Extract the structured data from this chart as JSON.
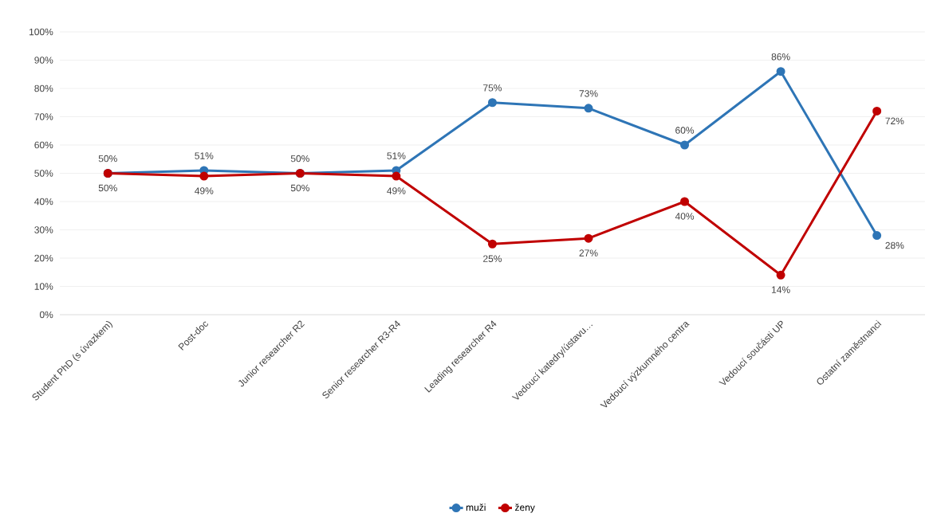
{
  "chart_data": {
    "type": "line",
    "categories": [
      "Student PhD (s úvazkem)",
      "Post-doc",
      "Junior researcher R2",
      "Senior researcher R3-R4",
      "Leading researcher R4",
      "Vedoucí katedry/ústavu…",
      "Vedoucí výzkumného centra",
      "Vedoucí součásti UP",
      "Ostatní zaměstnanci"
    ],
    "series": [
      {
        "name": "muži",
        "color": "#2e75b6",
        "values": [
          50,
          51,
          50,
          51,
          75,
          73,
          60,
          86,
          28
        ],
        "value_labels": [
          "50%",
          "51%",
          "50%",
          "51%",
          "75%",
          "73%",
          "60%",
          "86%",
          "28%"
        ]
      },
      {
        "name": "ženy",
        "color": "#c00000",
        "values": [
          50,
          49,
          50,
          49,
          25,
          27,
          40,
          14,
          72
        ],
        "value_labels": [
          "50%",
          "49%",
          "50%",
          "49%",
          "25%",
          "27%",
          "40%",
          "14%",
          "72%"
        ]
      }
    ],
    "ylim": [
      0,
      100
    ],
    "yticks": [
      {
        "value": 0,
        "label": "0%"
      },
      {
        "value": 10,
        "label": "10%"
      },
      {
        "value": 20,
        "label": "20%"
      },
      {
        "value": 30,
        "label": "30%"
      },
      {
        "value": 40,
        "label": "40%"
      },
      {
        "value": 50,
        "label": "50%"
      },
      {
        "value": 60,
        "label": "60%"
      },
      {
        "value": 70,
        "label": "70%"
      },
      {
        "value": 80,
        "label": "80%"
      },
      {
        "value": 90,
        "label": "90%"
      },
      {
        "value": 100,
        "label": "100%"
      }
    ],
    "grid": "y",
    "legend": "bottom",
    "marker": "circle",
    "line_style": "solid"
  }
}
